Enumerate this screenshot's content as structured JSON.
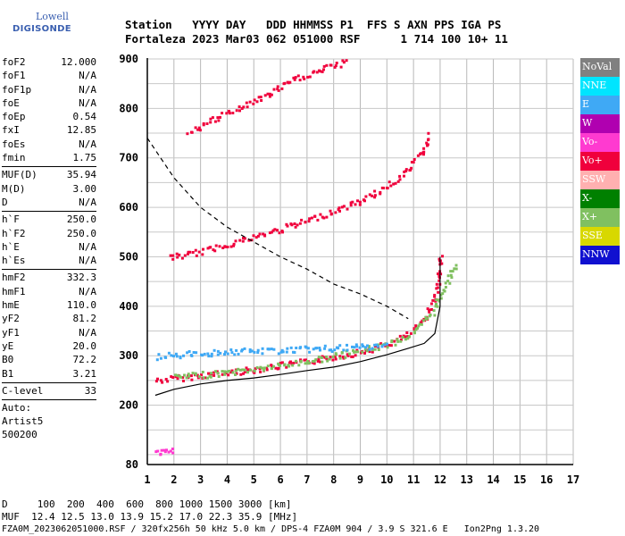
{
  "logo": {
    "line1": "Lowell",
    "line2": "DIGISONDE"
  },
  "header": {
    "line1": "Station   YYYY DAY   DDD HHMMSS P1  FFS S AXN PPS IGA PS",
    "line2": "Fortaleza 2023 Mar03 062 051000 RSF      1 714 100 10+ 11"
  },
  "params": [
    {
      "name": "foF2",
      "value": "12.000"
    },
    {
      "name": "foF1",
      "value": "N/A"
    },
    {
      "name": "foF1p",
      "value": "N/A"
    },
    {
      "name": "foE",
      "value": "N/A"
    },
    {
      "name": "foEp",
      "value": "0.54"
    },
    {
      "name": "fxI",
      "value": "12.85"
    },
    {
      "name": "foEs",
      "value": "N/A"
    },
    {
      "name": "fmin",
      "value": "1.75"
    },
    {
      "sep": true
    },
    {
      "name": "MUF(D)",
      "value": "35.94"
    },
    {
      "name": "M(D)",
      "value": "3.00"
    },
    {
      "name": "D",
      "value": "N/A"
    },
    {
      "sep": true
    },
    {
      "name": "h`F",
      "value": "250.0"
    },
    {
      "name": "h`F2",
      "value": "250.0"
    },
    {
      "name": "h`E",
      "value": "N/A"
    },
    {
      "name": "h`Es",
      "value": "N/A"
    },
    {
      "sep": true
    },
    {
      "name": "hmF2",
      "value": "332.3"
    },
    {
      "name": "hmF1",
      "value": "N/A"
    },
    {
      "name": "hmE",
      "value": "110.0"
    },
    {
      "name": "yF2",
      "value": "81.2"
    },
    {
      "name": "yF1",
      "value": "N/A"
    },
    {
      "name": "yE",
      "value": "20.0"
    },
    {
      "name": "B0",
      "value": "72.2"
    },
    {
      "name": "B1",
      "value": "3.21"
    },
    {
      "sep": true
    },
    {
      "name": "C-level",
      "value": "33"
    },
    {
      "sep": true
    }
  ],
  "auto": {
    "line1": "Auto:",
    "line2": "Artist5",
    "line3": "500200"
  },
  "footer": {
    "line1": "D     100  200  400  600  800 1000 1500 3000 [km]",
    "line2": "MUF  12.4 12.5 13.0 13.9 15.2 17.0 22.3 35.9 [MHz]",
    "line3": "FZA0M_2023062051000.RSF / 320fx256h 50 kHz 5.0 km / DPS-4 FZA0M 904 / 3.9 S 321.6 E   Ion2Png 1.3.20"
  },
  "legend": [
    {
      "label": "NoVal",
      "color": "#808080"
    },
    {
      "label": "NNE",
      "color": "#00e5ff"
    },
    {
      "label": "E",
      "color": "#3fa9f5"
    },
    {
      "label": "W",
      "color": "#b000b0"
    },
    {
      "label": "Vo-",
      "color": "#ff3ad0"
    },
    {
      "label": "Vo+",
      "color": "#f0003c"
    },
    {
      "label": "SSW",
      "color": "#ffb0b0"
    },
    {
      "label": "X-",
      "color": "#008000"
    },
    {
      "label": "X+",
      "color": "#80c060"
    },
    {
      "label": "SSE",
      "color": "#d8d800"
    },
    {
      "label": "NNW",
      "color": "#1010d0"
    }
  ],
  "chart_data": {
    "type": "scatter",
    "title": "",
    "xlabel": "",
    "ylabel": "",
    "xlim": [
      1,
      17
    ],
    "ylim": [
      80,
      900
    ],
    "grid": true,
    "x_ticks": [
      1,
      2,
      3,
      4,
      5,
      6,
      7,
      8,
      9,
      10,
      11,
      12,
      13,
      14,
      15,
      16,
      17
    ],
    "y_ticks": [
      80,
      200,
      300,
      400,
      500,
      600,
      700,
      800,
      900
    ],
    "traces": [
      {
        "name": "O-mode F2 trace (Vo+)",
        "color": "#f0003c",
        "x": [
          1.3,
          2.0,
          3.0,
          4.0,
          5.0,
          6.0,
          7.0,
          8.0,
          9.0,
          10.0,
          10.8,
          11.3,
          11.7,
          11.9,
          12.0
        ],
        "y": [
          252,
          256,
          262,
          268,
          274,
          282,
          290,
          300,
          310,
          325,
          345,
          370,
          410,
          450,
          510
        ]
      },
      {
        "name": "X-mode F2 trace (X+)",
        "color": "#80c060",
        "x": [
          2.0,
          4.0,
          6.0,
          8.0,
          10.0,
          11.0,
          11.7,
          12.1,
          12.4,
          12.6
        ],
        "y": [
          258,
          268,
          282,
          300,
          325,
          348,
          390,
          440,
          470,
          490
        ]
      },
      {
        "name": "second-hop F2 trace",
        "color": "#f0003c",
        "x": [
          1.8,
          3.0,
          4.0,
          5.0,
          6.0,
          7.0,
          8.0,
          9.0,
          10.0,
          10.8,
          11.3,
          11.6
        ],
        "y": [
          500,
          512,
          528,
          542,
          558,
          575,
          595,
          615,
          645,
          680,
          715,
          750
        ]
      },
      {
        "name": "third-hop F2 trace",
        "color": "#f0003c",
        "x": [
          2.5,
          3.5,
          4.5,
          5.5,
          6.5,
          7.5,
          8.5
        ],
        "y": [
          755,
          780,
          805,
          830,
          860,
          880,
          897
        ]
      },
      {
        "name": "oblique scatter (E)",
        "color": "#3fa9f5",
        "x": [
          1.3,
          2.5,
          4.0,
          5.5,
          7.0,
          8.5,
          10.0
        ],
        "y": [
          300,
          305,
          310,
          312,
          315,
          318,
          322
        ]
      },
      {
        "name": "E-layer echoes (Vo-)",
        "color": "#ff3ad0",
        "x": [
          1.3,
          1.5,
          1.8,
          2.0
        ],
        "y": [
          108,
          110,
          110,
          110
        ]
      }
    ],
    "curves": [
      {
        "name": "MUF dashed curve",
        "style": "dashed",
        "x": [
          1.0,
          2.0,
          3.0,
          4.0,
          5.0,
          6.0,
          7.0,
          8.0,
          9.0,
          10.0,
          10.8
        ],
        "y": [
          740,
          660,
          600,
          560,
          530,
          500,
          475,
          445,
          425,
          400,
          375
        ]
      },
      {
        "name": "true-height profile",
        "style": "solid",
        "x": [
          1.3,
          2.0,
          3.0,
          4.0,
          5.0,
          6.0,
          7.0,
          8.0,
          9.0,
          10.0,
          10.8,
          11.4,
          11.8,
          12.0,
          12.0
        ],
        "y": [
          220,
          232,
          243,
          250,
          255,
          262,
          270,
          277,
          288,
          302,
          315,
          325,
          345,
          400,
          500
        ]
      }
    ]
  }
}
